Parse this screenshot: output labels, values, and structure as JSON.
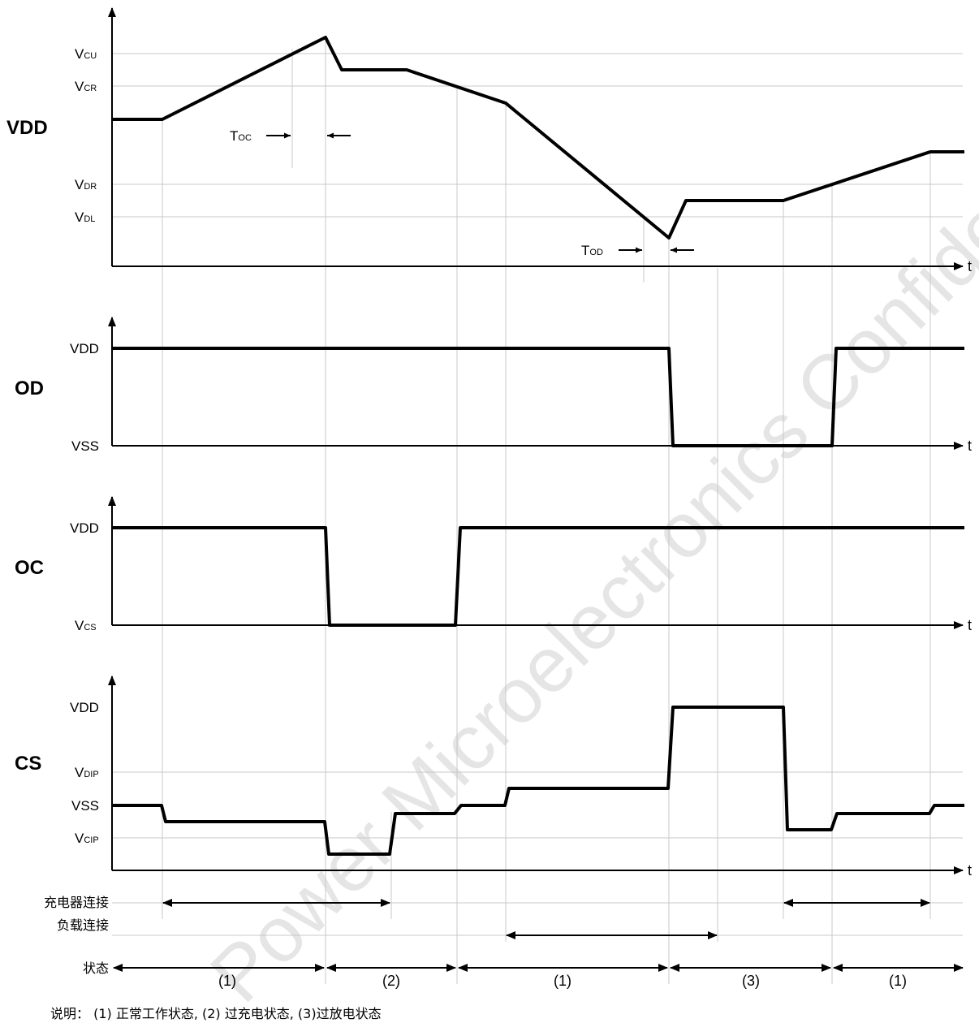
{
  "panels": {
    "vdd": {
      "signal": "VDD",
      "levels": [
        {
          "main": "V",
          "sub": "CU"
        },
        {
          "main": "V",
          "sub": "CR"
        },
        {
          "main": "V",
          "sub": "DR"
        },
        {
          "main": "V",
          "sub": "DL"
        }
      ],
      "toc": {
        "main": "T",
        "sub": "OC"
      },
      "tod": {
        "main": "T",
        "sub": "OD"
      },
      "axis_t": "t"
    },
    "od": {
      "signal": "OD",
      "high": "VDD",
      "low": "VSS",
      "axis_t": "t"
    },
    "oc": {
      "signal": "OC",
      "high": "VDD",
      "low_main": "V",
      "low_sub": "CS",
      "axis_t": "t"
    },
    "cs": {
      "signal": "CS",
      "high": "VDD",
      "vdip_main": "V",
      "vdip_sub": "DIP",
      "vss": "VSS",
      "vcip_main": "V",
      "vcip_sub": "CIP",
      "axis_t": "t"
    }
  },
  "bottom": {
    "charger_label": "充电器连接",
    "load_label": "负载连接",
    "state_label": "状态",
    "states": [
      "(1)",
      "(2)",
      "(1)",
      "(3)",
      "(1)"
    ],
    "note": "说明： (1) 正常工作状态, (2) 过充电状态, (3)过放电状态"
  },
  "watermark": "Power Microelectronics Confidential"
}
